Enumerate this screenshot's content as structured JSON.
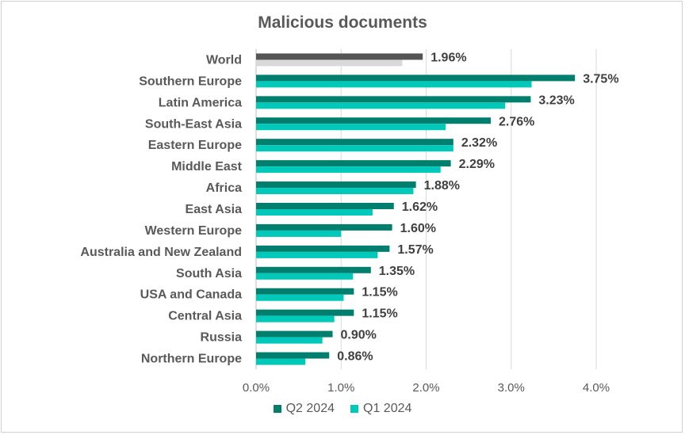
{
  "chart_data": {
    "type": "bar",
    "orientation": "horizontal",
    "title": "Malicious documents",
    "categories": [
      "World",
      "Southern Europe",
      "Latin America",
      "South-East Asia",
      "Eastern Europe",
      "Middle East",
      "Africa",
      "East Asia",
      "Western Europe",
      "Australia and New Zealand",
      "South Asia",
      "USA and Canada",
      "Central Asia",
      "Russia",
      "Northern Europe"
    ],
    "series": [
      {
        "name": "Q2 2024",
        "color": "#007F6F",
        "values": [
          1.96,
          3.75,
          3.23,
          2.76,
          2.32,
          2.29,
          1.88,
          1.62,
          1.6,
          1.57,
          1.35,
          1.15,
          1.15,
          0.9,
          0.86
        ]
      },
      {
        "name": "Q1 2024",
        "color": "#00C9BA",
        "values": [
          1.72,
          3.24,
          2.93,
          2.23,
          2.32,
          2.17,
          1.85,
          1.37,
          1.0,
          1.43,
          1.14,
          1.03,
          0.92,
          0.78,
          0.58
        ]
      }
    ],
    "world_colors": {
      "Q2 2024": "#555555",
      "Q1 2024": "#D9D9D9"
    },
    "data_labels": [
      "1.96%",
      "3.75%",
      "3.23%",
      "2.76%",
      "2.32%",
      "2.29%",
      "1.88%",
      "1.62%",
      "1.60%",
      "1.57%",
      "1.35%",
      "1.15%",
      "1.15%",
      "0.90%",
      "0.86%"
    ],
    "x_ticks": [
      "0.0%",
      "1.0%",
      "2.0%",
      "3.0%",
      "4.0%"
    ],
    "xlim": [
      0,
      4
    ],
    "grid": true,
    "legend_position": "bottom"
  }
}
